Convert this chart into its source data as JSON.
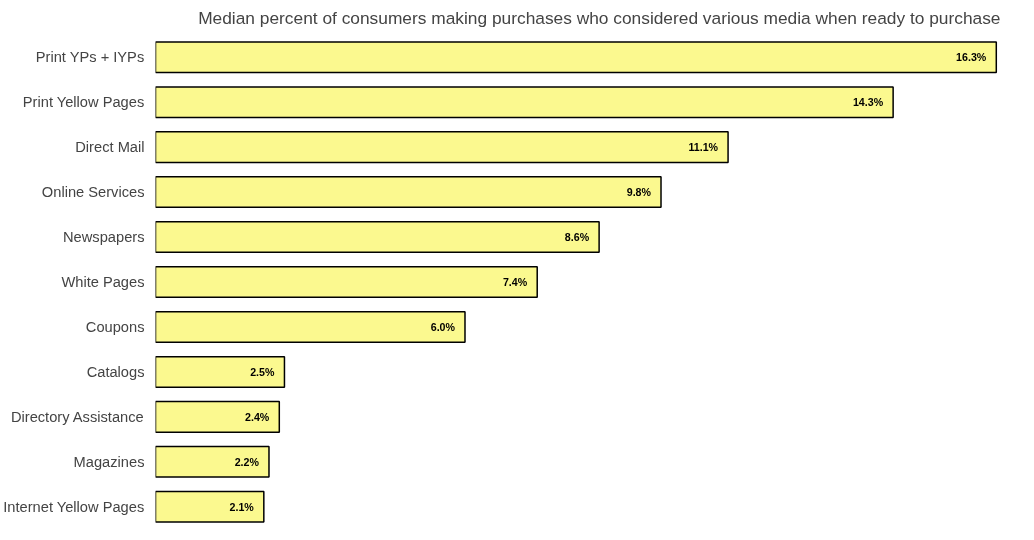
{
  "chart_data": {
    "type": "bar",
    "orientation": "horizontal",
    "title": "Median percent of consumers making purchases who considered various media when ready to purchase",
    "categories": [
      "Print YPs + IYPs",
      "Print Yellow Pages",
      "Direct Mail",
      "Online Services",
      "Newspapers",
      "White Pages",
      "Coupons",
      "Catalogs",
      "Directory Assistance",
      "Magazines",
      "Internet Yellow Pages"
    ],
    "values": [
      16.3,
      14.3,
      11.1,
      9.8,
      8.6,
      7.4,
      6.0,
      2.5,
      2.4,
      2.2,
      2.1
    ],
    "value_labels": [
      "16.3%",
      "14.3%",
      "11.1%",
      "9.8%",
      "8.6%",
      "7.4%",
      "6.0%",
      "2.5%",
      "2.4%",
      "2.2%",
      "2.1%"
    ],
    "color": "#fbf98f",
    "grid": false
  }
}
